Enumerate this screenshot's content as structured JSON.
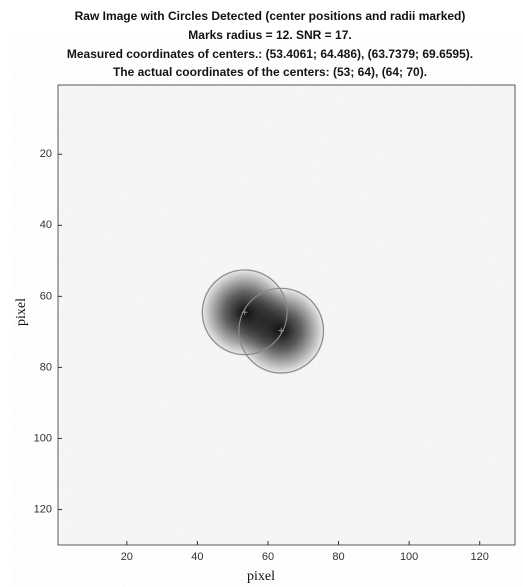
{
  "chart_data": {
    "type": "scatter",
    "title": [
      "Raw Image with Circles Detected (center positions and radii marked)",
      "Marks radius = 12. SNR = 17.",
      "Measured coordinates of centers.: (53.4061; 64.486), (63.7379; 69.6595).",
      "The actual coordinates of the centers: (53; 64), (64; 70)."
    ],
    "x_label": "pixel",
    "y_label": "pixel",
    "x": [
      53.4061,
      63.7379
    ],
    "values": [
      64.486,
      69.6595
    ],
    "marker_radius": 12,
    "color": "#8a8a8a",
    "xlim": [
      0.5,
      130
    ],
    "ylim": [
      0.5,
      130
    ],
    "y_reversed": true,
    "xticks": [
      20,
      40,
      60,
      80,
      100,
      120
    ],
    "yticks": [
      20,
      40,
      60,
      80,
      100,
      120
    ]
  }
}
